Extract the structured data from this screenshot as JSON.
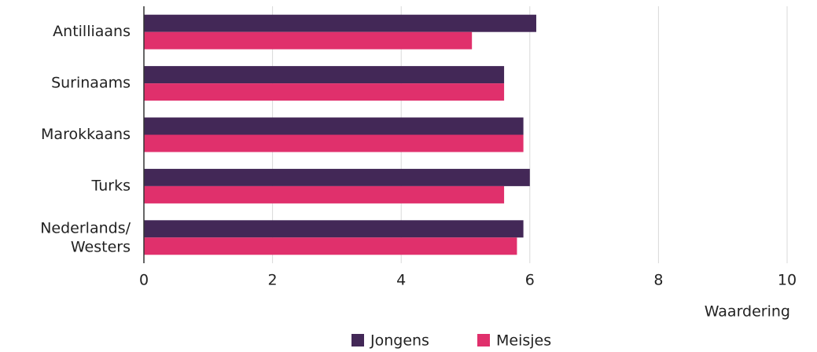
{
  "chart_data": {
    "type": "bar",
    "orientation": "horizontal",
    "categories": [
      "Antilliaans",
      "Surinaams",
      "Marokkaans",
      "Turks",
      "Nederlands/\nWesters"
    ],
    "series": [
      {
        "name": "Jongens",
        "color": "#432857",
        "values": [
          6.1,
          5.6,
          5.9,
          6.0,
          5.9
        ]
      },
      {
        "name": "Meisjes",
        "color": "#e0306c",
        "values": [
          5.1,
          5.6,
          5.9,
          5.6,
          5.8
        ]
      }
    ],
    "xlabel": "Waardering",
    "xlim": [
      0,
      10
    ],
    "xticks": [
      0,
      2,
      4,
      6,
      8,
      10
    ],
    "grid": true,
    "legend": "bottom"
  }
}
